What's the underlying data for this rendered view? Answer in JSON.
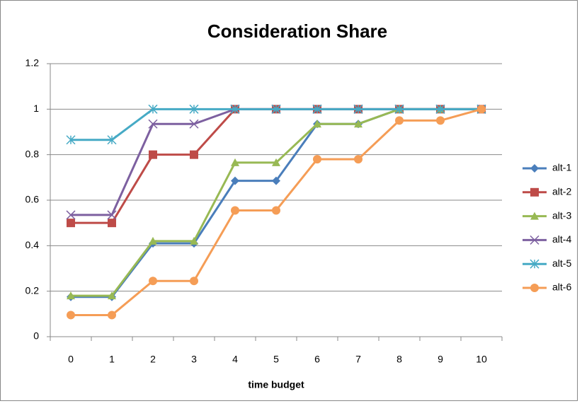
{
  "chart_data": {
    "type": "line",
    "title": "Consideration Share",
    "x_label": "time budget",
    "categories": [
      "0",
      "1",
      "2",
      "3",
      "4",
      "5",
      "6",
      "7",
      "8",
      "9",
      "10"
    ],
    "ylim": [
      0,
      1.2
    ],
    "yticks": [
      0,
      0.2,
      0.4,
      0.6,
      0.8,
      1,
      1.2
    ],
    "grid": true,
    "legend": "right",
    "series": [
      {
        "name": "alt-1",
        "color": "#4a7ebb",
        "marker": "diamond",
        "values": [
          0.175,
          0.175,
          0.41,
          0.41,
          0.685,
          0.685,
          0.935,
          0.935,
          1,
          1,
          1
        ]
      },
      {
        "name": "alt-2",
        "color": "#be4b48",
        "marker": "square",
        "values": [
          0.5,
          0.5,
          0.8,
          0.8,
          1,
          1,
          1,
          1,
          1,
          1,
          1
        ]
      },
      {
        "name": "alt-3",
        "color": "#98b954",
        "marker": "triangle",
        "values": [
          0.18,
          0.18,
          0.42,
          0.42,
          0.765,
          0.765,
          0.935,
          0.935,
          1,
          1,
          1
        ]
      },
      {
        "name": "alt-4",
        "color": "#7d60a0",
        "marker": "x",
        "values": [
          0.535,
          0.535,
          0.935,
          0.935,
          1,
          1,
          1,
          1,
          1,
          1,
          1
        ]
      },
      {
        "name": "alt-5",
        "color": "#46aac5",
        "marker": "star",
        "values": [
          0.865,
          0.865,
          1,
          1,
          1,
          1,
          1,
          1,
          1,
          1,
          1
        ]
      },
      {
        "name": "alt-6",
        "color": "#f59d56",
        "marker": "circle",
        "values": [
          0.095,
          0.095,
          0.245,
          0.245,
          0.555,
          0.555,
          0.78,
          0.78,
          0.95,
          0.95,
          1
        ]
      }
    ]
  }
}
